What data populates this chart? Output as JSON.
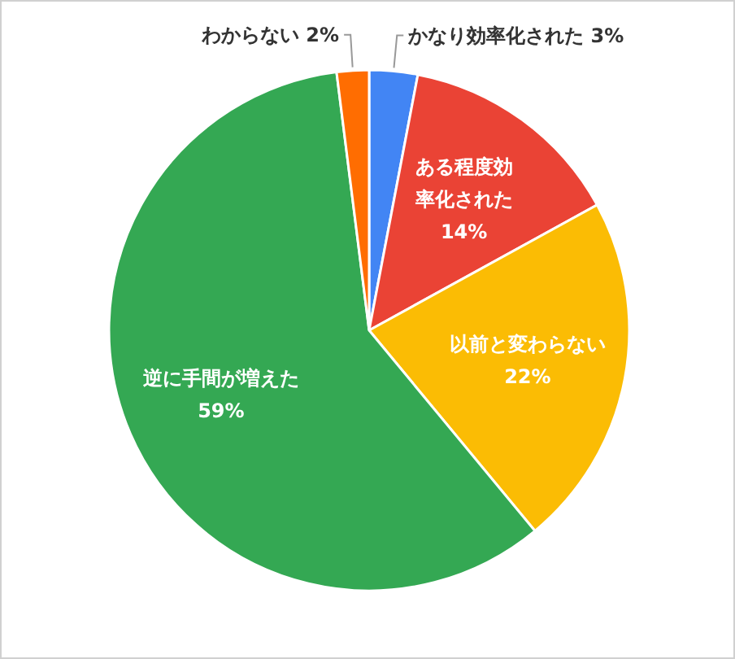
{
  "chart_data": {
    "type": "pie",
    "categories": [
      "かなり効率化された",
      "ある程度効率化された",
      "以前と変わらない",
      "逆に手間が増えた",
      "わからない"
    ],
    "values": [
      3,
      14,
      22,
      59,
      2
    ],
    "value_labels": [
      "3%",
      "14%",
      "22%",
      "59%",
      "2%"
    ],
    "colors": [
      "#4285f4",
      "#ea4335",
      "#fbbc04",
      "#34a853",
      "#ff6d01"
    ]
  }
}
